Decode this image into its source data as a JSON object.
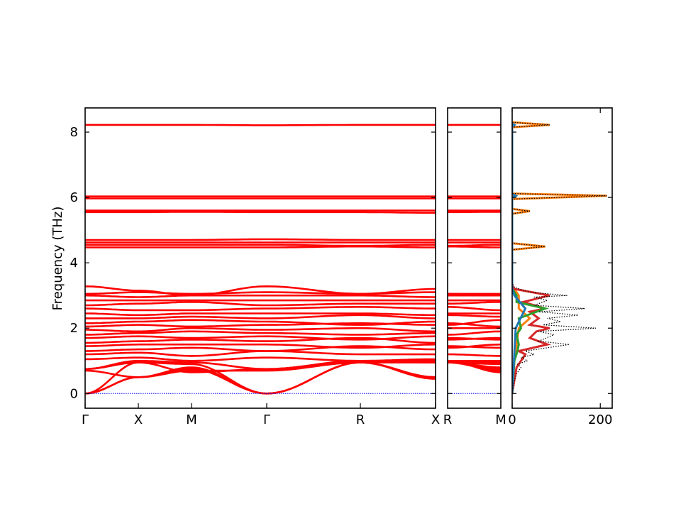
{
  "chart_data": [
    {
      "type": "line",
      "panel": "band-structure-main",
      "ylabel": "Frequency (THz)",
      "ylim": [
        -0.45,
        8.74
      ],
      "yticks": [
        0,
        2,
        4,
        6,
        8
      ],
      "xtick_labels": [
        "Γ",
        "X",
        "M",
        "Γ",
        "R",
        "X"
      ],
      "band_color": "#ff0000",
      "zero_line_color": "#0000ff",
      "bands": [
        [
          0,
          0.5,
          0.75,
          0,
          0.95,
          0.5
        ],
        [
          0,
          0.5,
          0.8,
          0,
          0.95,
          0.5
        ],
        [
          0,
          0.95,
          0.9,
          0,
          0.95,
          0.95
        ],
        [
          0.7,
          0.5,
          0.7,
          0.7,
          0.95,
          0.45
        ],
        [
          0.75,
          0.95,
          0.65,
          0.75,
          1.0,
          0.95
        ],
        [
          0.75,
          1.0,
          0.95,
          0.75,
          1.0,
          1.0
        ],
        [
          1.05,
          1.1,
          1.0,
          1.1,
          1.0,
          1.05
        ],
        [
          1.2,
          1.25,
          1.15,
          1.3,
          1.2,
          1.2
        ],
        [
          1.3,
          1.35,
          1.4,
          1.3,
          1.45,
          1.35
        ],
        [
          1.45,
          1.5,
          1.5,
          1.5,
          1.4,
          1.5
        ],
        [
          1.55,
          1.6,
          1.65,
          1.6,
          1.7,
          1.55
        ],
        [
          1.7,
          1.75,
          1.7,
          1.75,
          1.65,
          1.75
        ],
        [
          1.8,
          1.85,
          1.9,
          1.85,
          1.8,
          1.85
        ],
        [
          1.95,
          1.9,
          2.0,
          1.95,
          2.0,
          1.9
        ],
        [
          2.05,
          2.1,
          2.05,
          2.1,
          2.15,
          2.1
        ],
        [
          2.15,
          2.2,
          2.25,
          2.2,
          2.1,
          2.2
        ],
        [
          2.3,
          2.3,
          2.35,
          2.3,
          2.4,
          2.3
        ],
        [
          2.45,
          2.4,
          2.45,
          2.45,
          2.45,
          2.4
        ],
        [
          2.6,
          2.55,
          2.55,
          2.6,
          2.65,
          2.6
        ],
        [
          2.7,
          2.75,
          2.8,
          2.7,
          2.75,
          2.75
        ],
        [
          2.85,
          2.85,
          2.85,
          2.85,
          2.85,
          2.85
        ],
        [
          3.0,
          2.95,
          3.0,
          3.0,
          3.0,
          2.95
        ],
        [
          3.05,
          3.1,
          3.05,
          3.1,
          3.05,
          3.1
        ],
        [
          3.28,
          3.15,
          3.0,
          3.28,
          3.05,
          3.2
        ],
        [
          4.47,
          4.47,
          4.47,
          4.47,
          4.5,
          4.47
        ],
        [
          4.55,
          4.55,
          4.55,
          4.55,
          4.52,
          4.55
        ],
        [
          4.62,
          4.62,
          4.62,
          4.62,
          4.62,
          4.62
        ],
        [
          4.7,
          4.7,
          4.7,
          4.72,
          4.7,
          4.7
        ],
        [
          5.55,
          5.55,
          5.56,
          5.55,
          5.55,
          5.53
        ],
        [
          5.6,
          5.6,
          5.6,
          5.6,
          5.6,
          5.6
        ],
        [
          5.97,
          5.97,
          5.97,
          5.97,
          5.97,
          5.97
        ],
        [
          6.03,
          6.03,
          6.03,
          6.03,
          6.03,
          6.03
        ],
        [
          8.22,
          8.22,
          8.22,
          8.21,
          8.22,
          8.22
        ]
      ]
    },
    {
      "type": "line",
      "panel": "band-structure-r-m",
      "xtick_labels": [
        "R",
        "M"
      ],
      "bands_from_main_at": [
        "R",
        "M"
      ]
    },
    {
      "type": "line",
      "panel": "density-of-states",
      "xlim": [
        0,
        227
      ],
      "xticks": [
        0,
        200
      ],
      "series": [
        {
          "color": "#ff7f0e",
          "points": [
            [
              0,
              0
            ],
            [
              1,
              5
            ],
            [
              1.5,
              10
            ],
            [
              2,
              15
            ],
            [
              2.3,
              40
            ],
            [
              2.6,
              15
            ],
            [
              3.0,
              15
            ],
            [
              3.3,
              0
            ],
            [
              4.4,
              0
            ],
            [
              4.5,
              75
            ],
            [
              4.6,
              0
            ],
            [
              5.5,
              0
            ],
            [
              5.58,
              40
            ],
            [
              5.65,
              0
            ],
            [
              5.95,
              0
            ],
            [
              6.05,
              215
            ],
            [
              6.12,
              0
            ],
            [
              8.15,
              0
            ],
            [
              8.22,
              85
            ],
            [
              8.3,
              0
            ]
          ]
        },
        {
          "color": "#d62728",
          "points": [
            [
              0,
              0
            ],
            [
              0.8,
              10
            ],
            [
              1.0,
              20
            ],
            [
              1.2,
              30
            ],
            [
              1.3,
              15
            ],
            [
              1.5,
              80
            ],
            [
              1.7,
              40
            ],
            [
              1.9,
              55
            ],
            [
              2.0,
              85
            ],
            [
              2.1,
              40
            ],
            [
              2.3,
              60
            ],
            [
              2.5,
              40
            ],
            [
              2.6,
              75
            ],
            [
              2.8,
              25
            ],
            [
              3.0,
              85
            ],
            [
              3.2,
              5
            ],
            [
              3.3,
              0
            ]
          ]
        },
        {
          "color": "#2ca02c",
          "points": [
            [
              0,
              0
            ],
            [
              1,
              5
            ],
            [
              1.3,
              12
            ],
            [
              1.5,
              15
            ],
            [
              1.8,
              10
            ],
            [
              2,
              20
            ],
            [
              2.3,
              15
            ],
            [
              2.6,
              75
            ],
            [
              2.8,
              10
            ],
            [
              3.0,
              10
            ],
            [
              3.2,
              0
            ]
          ]
        },
        {
          "color": "#1f77b4",
          "points": [
            [
              0,
              0
            ],
            [
              1,
              4
            ],
            [
              1.5,
              6
            ],
            [
              2,
              8
            ],
            [
              2.6,
              30
            ],
            [
              3,
              5
            ],
            [
              3.2,
              0
            ],
            [
              6.0,
              0
            ],
            [
              6.05,
              8
            ],
            [
              6.1,
              0
            ],
            [
              8.18,
              0
            ],
            [
              8.22,
              5
            ],
            [
              8.26,
              0
            ]
          ]
        },
        {
          "color": "#000000",
          "style": "dotted",
          "points": [
            [
              0,
              0
            ],
            [
              0.3,
              3
            ],
            [
              0.6,
              10
            ],
            [
              0.8,
              20
            ],
            [
              0.9,
              12
            ],
            [
              1.0,
              35
            ],
            [
              1.1,
              20
            ],
            [
              1.2,
              50
            ],
            [
              1.3,
              30
            ],
            [
              1.5,
              130
            ],
            [
              1.6,
              60
            ],
            [
              1.8,
              95
            ],
            [
              1.9,
              60
            ],
            [
              2.0,
              190
            ],
            [
              2.1,
              70
            ],
            [
              2.2,
              110
            ],
            [
              2.3,
              80
            ],
            [
              2.4,
              150
            ],
            [
              2.5,
              60
            ],
            [
              2.6,
              165
            ],
            [
              2.7,
              50
            ],
            [
              2.85,
              80
            ],
            [
              2.95,
              50
            ],
            [
              3.0,
              125
            ],
            [
              3.1,
              40
            ],
            [
              3.25,
              5
            ],
            [
              3.4,
              0
            ],
            [
              4.4,
              0
            ],
            [
              4.5,
              75
            ],
            [
              4.6,
              0
            ],
            [
              5.5,
              0
            ],
            [
              5.58,
              40
            ],
            [
              5.65,
              0
            ],
            [
              5.95,
              0
            ],
            [
              6.05,
              215
            ],
            [
              6.12,
              0
            ],
            [
              8.15,
              0
            ],
            [
              8.22,
              85
            ],
            [
              8.3,
              0
            ]
          ]
        }
      ]
    }
  ]
}
